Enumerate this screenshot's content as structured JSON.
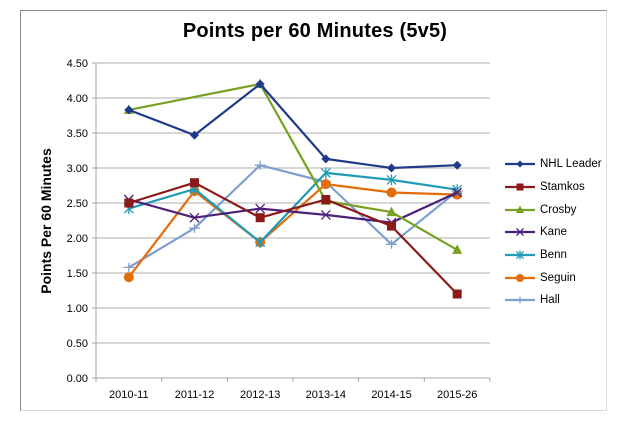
{
  "chart_data": {
    "type": "line",
    "title": "Points per 60 Minutes (5v5)",
    "xlabel": "",
    "ylabel": "Points Per 60 Minutes",
    "ylim": [
      0,
      4.5
    ],
    "yticks": [
      "0.00",
      "0.50",
      "1.00",
      "1.50",
      "2.00",
      "2.50",
      "3.00",
      "3.50",
      "4.00",
      "4.50"
    ],
    "grid": true,
    "legend_position": "right",
    "categories": [
      "2010-11",
      "2011-12",
      "2012-13",
      "2013-14",
      "2014-15",
      "2015-26"
    ],
    "series": [
      {
        "name": "NHL Leader",
        "color": "#1f3a8a",
        "marker": "diamond",
        "values": [
          3.83,
          3.47,
          4.2,
          3.13,
          3.0,
          3.04
        ]
      },
      {
        "name": "Stamkos",
        "color": "#8b1a1a",
        "marker": "square",
        "values": [
          2.5,
          2.79,
          2.29,
          2.55,
          2.17,
          1.2
        ]
      },
      {
        "name": "Crosby",
        "color": "#76a121",
        "marker": "triangle",
        "values": [
          3.83,
          null,
          4.2,
          2.53,
          2.37,
          1.83
        ]
      },
      {
        "name": "Kane",
        "color": "#4b1f7a",
        "marker": "x",
        "values": [
          2.55,
          2.29,
          2.42,
          2.33,
          2.22,
          2.65
        ]
      },
      {
        "name": "Benn",
        "color": "#1f9bb5",
        "marker": "star",
        "values": [
          2.42,
          2.7,
          1.94,
          2.93,
          2.83,
          2.69
        ]
      },
      {
        "name": "Seguin",
        "color": "#e46c0a",
        "marker": "circle",
        "values": [
          1.44,
          2.67,
          1.94,
          2.77,
          2.65,
          2.62
        ]
      },
      {
        "name": "Hall",
        "color": "#7f9fcf",
        "marker": "plus",
        "values": [
          1.58,
          2.14,
          3.04,
          2.8,
          1.91,
          2.67
        ]
      }
    ]
  }
}
